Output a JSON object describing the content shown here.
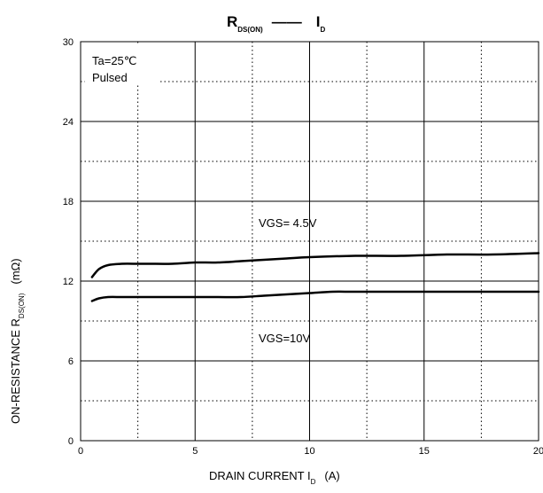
{
  "chart_data": {
    "type": "line",
    "title": {
      "main": "R",
      "main_sub": "DS(ON)",
      "separator": "——",
      "vs": "I",
      "vs_sub": "D"
    },
    "xlabel": {
      "text": "DRAIN CURRENT  I",
      "sub": "D",
      "unit": "(A)"
    },
    "ylabel": {
      "text": "ON-RESISTANCE  R",
      "sub": "DS(ON)",
      "unit": "(mΩ)"
    },
    "xlim": [
      0,
      20
    ],
    "ylim": [
      0,
      30
    ],
    "x_ticks": [
      0,
      5,
      10,
      15,
      20
    ],
    "y_ticks": [
      0,
      6,
      12,
      18,
      24,
      30
    ],
    "x_minor_dotted": [
      2.5,
      7.5,
      12.5,
      17.5
    ],
    "y_minor_dotted": [
      3,
      9,
      15,
      21,
      27
    ],
    "grid": true,
    "conditions": [
      "Ta=25℃",
      "Pulsed"
    ],
    "series": [
      {
        "name": "VGS= 4.5V",
        "x": [
          0.5,
          0.8,
          1.2,
          1.8,
          2.5,
          3,
          4,
          5,
          6,
          7,
          8,
          9,
          10,
          12,
          14,
          16,
          18,
          20
        ],
        "y": [
          12.3,
          12.9,
          13.2,
          13.3,
          13.3,
          13.3,
          13.3,
          13.4,
          13.4,
          13.5,
          13.6,
          13.7,
          13.8,
          13.9,
          13.9,
          14.0,
          14.0,
          14.1
        ]
      },
      {
        "name": "VGS=10V",
        "x": [
          0.5,
          0.8,
          1.2,
          1.8,
          2.5,
          3,
          4,
          5,
          6,
          7,
          8,
          9,
          10,
          11,
          12,
          14,
          16,
          18,
          20
        ],
        "y": [
          10.5,
          10.7,
          10.8,
          10.8,
          10.8,
          10.8,
          10.8,
          10.8,
          10.8,
          10.8,
          10.9,
          11.0,
          11.1,
          11.2,
          11.2,
          11.2,
          11.2,
          11.2,
          11.2
        ]
      }
    ]
  }
}
